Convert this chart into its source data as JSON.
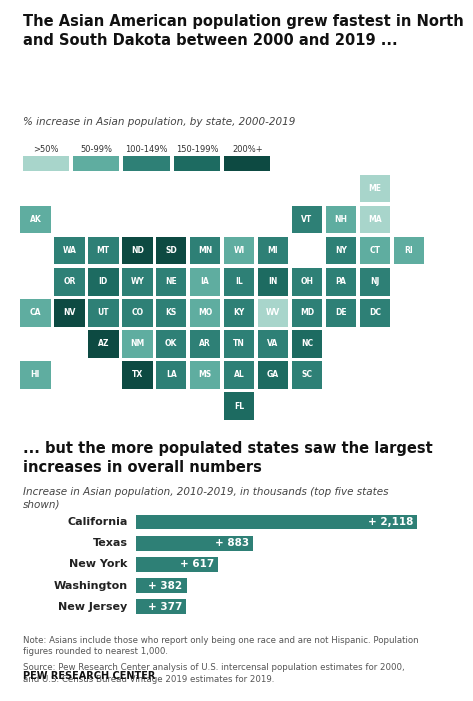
{
  "title1": "The Asian American population grew fastest in North\nand South Dakota between 2000 and 2019 ...",
  "subtitle1": "% increase in Asian population, by state, 2000-2019",
  "title2": "... but the more populated states saw the largest\nincreases in overall numbers",
  "subtitle2": "Increase in Asian population, 2010-2019, in thousands (top five states\nshown)",
  "legend_labels": [
    ">50%",
    "50-99%",
    "100-149%",
    "150-199%",
    "200%+"
  ],
  "legend_colors": [
    "#a8d5cb",
    "#5fada0",
    "#2e8076",
    "#1d6b61",
    "#0d4a42"
  ],
  "bar_states": [
    "California",
    "Texas",
    "New York",
    "Washington",
    "New Jersey"
  ],
  "bar_values": [
    2118,
    883,
    617,
    382,
    377
  ],
  "bar_color": "#2e8076",
  "bar_label_color": "#ffffff",
  "note": "Note: Asians include those who report only being one race and are not Hispanic. Population\nfigures rounded to nearest 1,000.",
  "source": "Source: Pew Research Center analysis of U.S. intercensal population estimates for 2000,\nand U.S. Census Bureau Vintage 2019 estimates for 2019.",
  "brand": "PEW RESEARCH CENTER",
  "bg_color": "#ffffff",
  "text_color": "#222222",
  "colors": {
    "c1": "#a8d5cb",
    "c2": "#5fada0",
    "c3": "#2e8076",
    "c4": "#1d6b61",
    "c5": "#0d4a42"
  },
  "states": {
    "ME": "c1",
    "VT": "c3",
    "NH": "c2",
    "MA": "c1",
    "RI": "c2",
    "CT": "c2",
    "NY": "c3",
    "NJ": "c3",
    "PA": "c3",
    "DE": "c3",
    "MD": "c3",
    "DC": "c3",
    "VA": "c3",
    "NC": "c4",
    "SC": "c3",
    "GA": "c4",
    "FL": "c4",
    "AL": "c3",
    "MS": "c2",
    "TN": "c3",
    "KY": "c3",
    "WV": "c1",
    "OH": "c3",
    "IN": "c4",
    "MI": "c3",
    "IL": "c3",
    "WI": "c2",
    "MN": "c3",
    "IA": "c2",
    "MO": "c2",
    "KS": "c3",
    "AR": "c3",
    "LA": "c3",
    "TX": "c5",
    "OK": "c3",
    "NM": "c2",
    "AZ": "c5",
    "CO": "c3",
    "NE": "c3",
    "SD": "c5",
    "ND": "c5",
    "WY": "c3",
    "MT": "c3",
    "ID": "c4",
    "UT": "c3",
    "NV": "c5",
    "CA": "c2",
    "OR": "c3",
    "WA": "c3",
    "AK": "c2",
    "HI": "c2"
  },
  "grid": [
    [
      null,
      null,
      null,
      null,
      null,
      null,
      null,
      null,
      null,
      null,
      "ME"
    ],
    [
      "AK",
      null,
      null,
      null,
      null,
      null,
      null,
      null,
      "VT",
      "NH",
      "MA"
    ],
    [
      null,
      "WA",
      "MT",
      "ND",
      "SD",
      "MN",
      "WI",
      "MI",
      null,
      "NY",
      "CT",
      "RI"
    ],
    [
      null,
      "OR",
      "ID",
      "WY",
      "NE",
      "IA",
      "IL",
      "IN",
      "OH",
      "PA",
      "NJ",
      null
    ],
    [
      "CA",
      "NV",
      "UT",
      "CO",
      "KS",
      "MO",
      "KY",
      "WV",
      "MD",
      "DE",
      "DC",
      null
    ],
    [
      null,
      null,
      "AZ",
      "NM",
      "OK",
      "AR",
      "TN",
      "VA",
      "NC",
      null,
      null,
      null
    ],
    [
      "HI",
      null,
      null,
      "TX",
      "LA",
      "MS",
      "AL",
      "GA",
      "SC",
      null,
      null,
      null
    ],
    [
      null,
      null,
      null,
      null,
      null,
      null,
      "FL",
      null,
      null,
      null,
      null,
      null
    ]
  ]
}
